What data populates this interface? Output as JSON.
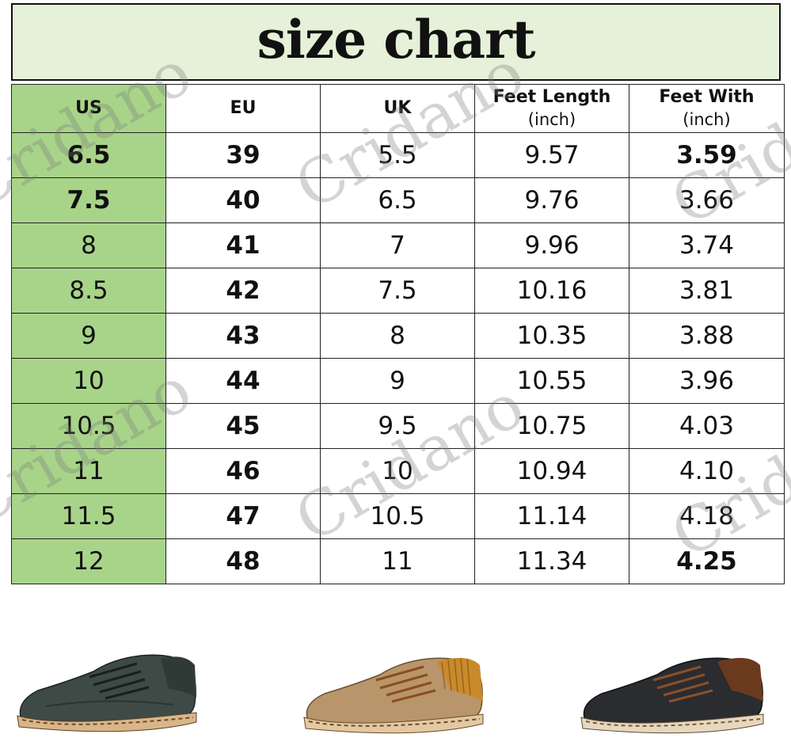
{
  "title": "size chart",
  "watermark": "Cridano",
  "table": {
    "headers": {
      "us": "US",
      "eu": "EU",
      "uk": "UK",
      "feet_length": "Feet Length",
      "feet_length_unit": "(inch)",
      "feet_width": "Feet With",
      "feet_width_unit": "(inch)"
    },
    "rows": [
      {
        "us": "6.5",
        "eu": "39",
        "uk": "5.5",
        "length": "9.57",
        "width": "3.59"
      },
      {
        "us": "7.5",
        "eu": "40",
        "uk": "6.5",
        "length": "9.76",
        "width": "3.66"
      },
      {
        "us": "8",
        "eu": "41",
        "uk": "7",
        "length": "9.96",
        "width": "3.74"
      },
      {
        "us": "8.5",
        "eu": "42",
        "uk": "7.5",
        "length": "10.16",
        "width": "3.81"
      },
      {
        "us": "9",
        "eu": "43",
        "uk": "8",
        "length": "10.35",
        "width": "3.88"
      },
      {
        "us": "10",
        "eu": "44",
        "uk": "9",
        "length": "10.55",
        "width": "3.96"
      },
      {
        "us": "10.5",
        "eu": "45",
        "uk": "9.5",
        "length": "10.75",
        "width": "4.03"
      },
      {
        "us": "11",
        "eu": "46",
        "uk": "10",
        "length": "10.94",
        "width": "4.10"
      },
      {
        "us": "11.5",
        "eu": "47",
        "uk": "10.5",
        "length": "11.14",
        "width": "4.18"
      },
      {
        "us": "12",
        "eu": "48",
        "uk": "11",
        "length": "11.34",
        "width": "4.25"
      }
    ]
  },
  "colors": {
    "title_bg": "#e5f1d8",
    "us_column": "#a8d48a",
    "shoe_green": "#3d4a46",
    "shoe_khaki": "#b8956a",
    "shoe_black": "#2a2c30"
  },
  "products": [
    {
      "name": "green-shoe-image"
    },
    {
      "name": "khaki-shoe-image"
    },
    {
      "name": "black-shoe-image"
    }
  ]
}
